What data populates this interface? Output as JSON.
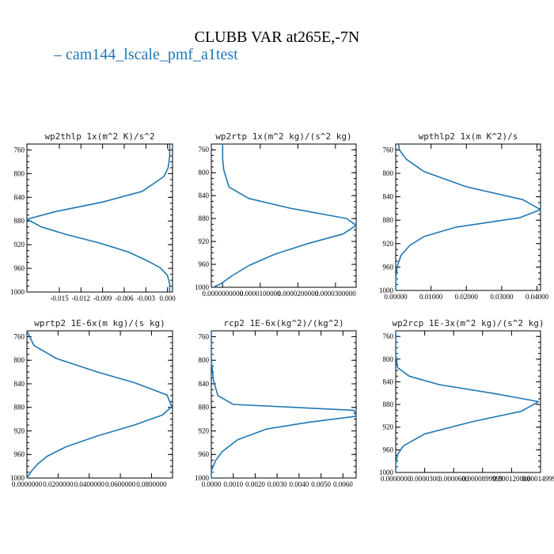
{
  "figure": {
    "title": "CLUBB VAR at265E,-7N",
    "legend_label": "cam144_lscale_pmf_a1test",
    "series_color": "#1f77b4"
  },
  "chart_data": [
    {
      "type": "line",
      "title": "wp2thlp  1x(m^2 K)/s^2",
      "xlim": [
        -0.0195,
        0.0007
      ],
      "ylim": [
        1000,
        750
      ],
      "x_ticks": [
        "-0.015",
        "-0.012",
        "-0.009",
        "-0.006",
        "-0.003",
        "0.000"
      ],
      "x_tick_values": [
        -0.015,
        -0.012,
        -0.009,
        -0.006,
        -0.003,
        0.0
      ],
      "y_ticks": [
        "760",
        "800",
        "840",
        "880",
        "920",
        "960",
        "1000"
      ],
      "y_tick_values": [
        760,
        800,
        840,
        880,
        920,
        960,
        1000
      ],
      "series": [
        {
          "x": [
            0.0003,
            0.0003,
            0.0001,
            -0.0005,
            -0.0035,
            -0.009,
            -0.0155,
            -0.0195,
            -0.0175,
            -0.014,
            -0.0095,
            -0.0055,
            -0.003,
            -0.001,
            0.0,
            0.0003,
            0.0003
          ],
          "y": [
            750,
            770,
            790,
            805,
            830,
            848,
            864,
            877,
            890,
            903,
            917,
            932,
            946,
            959,
            972,
            986,
            1000
          ]
        }
      ]
    },
    {
      "type": "line",
      "title": "wp2rtp  1x(m^2 kg)/(s^2 kg)",
      "xlim": [
        -3e-06,
        3.55e-05
      ],
      "ylim": [
        1000,
        750
      ],
      "x_ticks": [
        "0.0000000000",
        "0.0000100000",
        "0.0000200000",
        "0.0000300000"
      ],
      "x_tick_values": [
        0.0,
        1e-05,
        2e-05,
        3e-05
      ],
      "y_ticks": [
        "760",
        "800",
        "840",
        "880",
        "920",
        "960",
        "1000"
      ],
      "y_tick_values": [
        760,
        800,
        840,
        880,
        920,
        960,
        1000
      ],
      "series": [
        {
          "x": [
            0.0,
            0.0,
            3e-07,
            1.7e-06,
            7e-06,
            1.8e-05,
            3.3e-05,
            3.55e-05,
            3.2e-05,
            2.3e-05,
            1.4e-05,
            7e-06,
            2.5e-06,
            -5e-07,
            -2.5e-06
          ],
          "y": [
            750,
            775,
            795,
            825,
            845,
            862,
            880,
            892,
            907,
            923,
            942,
            962,
            980,
            994,
            1000
          ]
        }
      ]
    },
    {
      "type": "line",
      "title": "wpthlp2  1x(m K^2)/s",
      "xlim": [
        0.0,
        0.041
      ],
      "ylim": [
        1000,
        750
      ],
      "x_ticks": [
        "0.00000",
        "0.01000",
        "0.02000",
        "0.03000",
        "0.04000"
      ],
      "x_tick_values": [
        0.0,
        0.01,
        0.02,
        0.03,
        0.04
      ],
      "y_ticks": [
        "760",
        "800",
        "840",
        "880",
        "920",
        "960",
        "1000"
      ],
      "y_tick_values": [
        760,
        800,
        840,
        880,
        920,
        960,
        1000
      ],
      "series": [
        {
          "x": [
            0.0008,
            0.001,
            0.003,
            0.008,
            0.02,
            0.036,
            0.041,
            0.035,
            0.017,
            0.008,
            0.004,
            0.0015,
            0.0005,
            0.0001,
            0.0
          ],
          "y": [
            750,
            760,
            776,
            797,
            823,
            845,
            862,
            876,
            892,
            908,
            923,
            940,
            958,
            976,
            1000
          ]
        }
      ]
    },
    {
      "type": "line",
      "title": "wprtp2  1E-6x(m kg)/(s kg)",
      "xlim": [
        0.0,
        0.0935
      ],
      "ylim": [
        1000,
        750
      ],
      "x_ticks": [
        "0.0000000",
        "0.0200000",
        "0.0400000",
        "0.0600000",
        "0.0800000"
      ],
      "x_tick_values": [
        0.0,
        0.02,
        0.04,
        0.06,
        0.08
      ],
      "y_ticks": [
        "760",
        "800",
        "840",
        "880",
        "920",
        "960",
        "1000"
      ],
      "y_tick_values": [
        760,
        800,
        840,
        880,
        920,
        960,
        1000
      ],
      "series": [
        {
          "x": [
            0.0,
            0.0045,
            0.019,
            0.044,
            0.069,
            0.09,
            0.093,
            0.087,
            0.069,
            0.046,
            0.025,
            0.013,
            0.007,
            0.003,
            0.001,
            0.0
          ],
          "y": [
            750,
            775,
            797,
            819,
            838,
            859,
            879,
            893,
            910,
            928,
            947,
            963,
            976,
            988,
            996,
            1000
          ]
        }
      ]
    },
    {
      "type": "line",
      "title": "rcp2  1E-6x(kg^2)/(kg^2)",
      "xlim": [
        0.0,
        0.0066
      ],
      "ylim": [
        1000,
        750
      ],
      "x_ticks": [
        "0.0000",
        "0.0010",
        "0.0020",
        "0.0030",
        "0.0040",
        "0.0050",
        "0.0060"
      ],
      "x_tick_values": [
        0.0,
        0.001,
        0.002,
        0.003,
        0.004,
        0.005,
        0.006
      ],
      "y_ticks": [
        "760",
        "800",
        "840",
        "880",
        "920",
        "960",
        "1000"
      ],
      "y_tick_values": [
        760,
        800,
        840,
        880,
        920,
        960,
        1000
      ],
      "series": [
        {
          "x": [
            0.0,
            0.0,
            0.0001,
            0.0003,
            0.001,
            0.0065,
            0.0066,
            0.0045,
            0.0025,
            0.0012,
            0.0005,
            0.0002,
            0.0,
            0.0
          ],
          "y": [
            750,
            800,
            835,
            860,
            875,
            885,
            895,
            905,
            917,
            935,
            955,
            970,
            988,
            1000
          ]
        }
      ]
    },
    {
      "type": "line",
      "title": "wp2rcp  1E-3x(m^2 kg)/(s^2 kg)",
      "xlim": [
        0.0,
        0.00015
      ],
      "ylim": [
        1000,
        750
      ],
      "x_ticks": [
        "0.0000000",
        "0.0000300",
        "0.0000600",
        "0.0000899999",
        "0.000120000",
        "0.000149999"
      ],
      "x_tick_values": [
        0.0,
        3e-05,
        6e-05,
        9e-05,
        0.00012,
        0.00015
      ],
      "y_ticks": [
        "760",
        "800",
        "840",
        "880",
        "920",
        "960",
        "1000"
      ],
      "y_tick_values": [
        760,
        800,
        840,
        880,
        920,
        960,
        1000
      ],
      "series": [
        {
          "x": [
            0.0,
            0.0,
            2e-06,
            1.4e-05,
            4.5e-05,
            0.0001,
            0.000148,
            0.00013,
            8e-05,
            3e-05,
            8e-06,
            2e-06,
            0.0,
            0.0
          ],
          "y": [
            750,
            790,
            815,
            830,
            845,
            860,
            875,
            892,
            910,
            932,
            953,
            968,
            985,
            1000
          ]
        }
      ]
    }
  ]
}
